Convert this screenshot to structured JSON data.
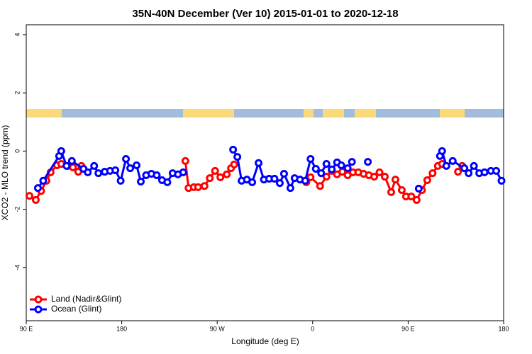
{
  "chart_data": {
    "type": "line",
    "title": "35N-40N December (Ver 10)   2015-01-01 to 2020-12-18",
    "x_label": "Longitude (deg E)",
    "y_label": "XCO2 - MLO trend (ppm)",
    "xlim": [
      90,
      540
    ],
    "ylim": [
      -5.83,
      4.34
    ],
    "xticks": [
      {
        "value": 90,
        "label": "90 E"
      },
      180,
      {
        "value": 270,
        "label": "90 W"
      },
      {
        "value": 360,
        "label": "0"
      },
      {
        "value": 450,
        "label": "90 E"
      },
      {
        "value": 540,
        "label": "180"
      }
    ],
    "yticks": [
      -4,
      -2,
      0,
      2,
      4
    ],
    "legend": "bottom-left",
    "series": [
      {
        "name": "Land (Nadir&Glint)",
        "color": "#ff0000",
        "x": [
          93,
          99,
          104,
          109,
          113,
          119,
          123,
          129,
          134,
          139,
          142,
          null,
          240,
          243,
          248,
          252,
          258,
          263,
          268,
          273,
          279,
          283,
          286,
          null,
          354,
          358,
          367,
          373,
          378,
          383,
          388,
          393,
          398,
          403,
          408,
          413,
          418,
          423,
          428,
          434,
          438,
          444,
          448,
          453,
          458,
          463,
          468,
          473,
          478,
          482,
          null,
          497,
          501
        ],
        "values": [
          -1.54,
          -1.68,
          -1.37,
          -1.02,
          -0.73,
          -0.49,
          -0.44,
          -0.51,
          -0.56,
          -0.71,
          -0.51,
          null,
          -0.34,
          -1.27,
          -1.24,
          -1.24,
          -1.2,
          -0.93,
          -0.68,
          -0.9,
          -0.8,
          -0.59,
          -0.46,
          null,
          -1.07,
          -0.9,
          -1.2,
          -0.88,
          -0.68,
          -0.8,
          -0.71,
          -0.83,
          -0.73,
          -0.73,
          -0.78,
          -0.83,
          -0.88,
          -0.73,
          -0.88,
          -1.41,
          -0.98,
          -1.34,
          -1.56,
          -1.56,
          -1.68,
          -1.34,
          -1.0,
          -0.76,
          -0.51,
          -0.44,
          null,
          -0.71,
          -0.51
        ]
      },
      {
        "name": "Ocean (Glint)",
        "color": "#0000ff",
        "x": [
          101,
          106,
          121,
          123,
          128,
          133,
          144,
          148,
          154,
          158,
          164,
          169,
          174,
          179,
          184,
          188,
          194,
          198,
          203,
          208,
          213,
          218,
          223,
          228,
          233,
          238,
          null,
          285,
          289,
          293,
          298,
          303,
          309,
          314,
          319,
          324,
          329,
          333,
          339,
          343,
          348,
          353,
          358,
          363,
          368,
          373,
          378,
          383,
          387,
          393,
          397,
          null,
          412,
          null,
          460,
          null,
          480,
          482,
          486,
          492,
          503,
          507,
          512,
          517,
          522,
          528,
          533,
          538
        ],
        "values": [
          -1.27,
          -1.02,
          -0.17,
          0.0,
          -0.51,
          -0.34,
          -0.61,
          -0.73,
          -0.51,
          -0.76,
          -0.71,
          -0.68,
          -0.66,
          -1.02,
          -0.27,
          -0.59,
          -0.49,
          -1.05,
          -0.83,
          -0.78,
          -0.83,
          -1.0,
          -1.07,
          -0.76,
          -0.8,
          -0.73,
          null,
          0.05,
          -0.2,
          -1.02,
          -0.98,
          -1.07,
          -0.41,
          -0.98,
          -0.95,
          -0.95,
          -1.1,
          -0.78,
          -1.27,
          -0.93,
          -0.98,
          -1.02,
          -0.27,
          -0.61,
          -0.76,
          -0.44,
          -0.63,
          -0.39,
          -0.49,
          -0.59,
          -0.37,
          null,
          -0.37,
          null,
          -1.29,
          null,
          -0.17,
          0.0,
          -0.51,
          -0.34,
          -0.59,
          -0.76,
          -0.51,
          -0.76,
          -0.73,
          -0.68,
          -0.68,
          -1.02
        ]
      }
    ]
  }
}
